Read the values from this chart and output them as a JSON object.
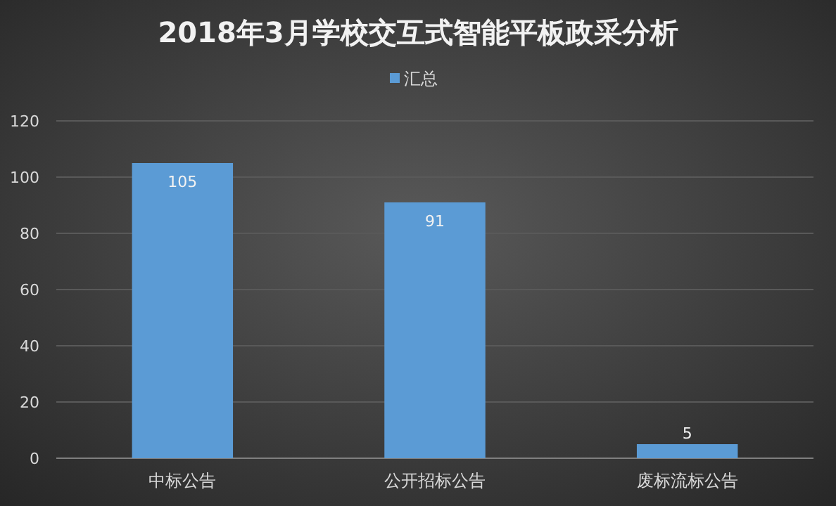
{
  "chart_data": {
    "type": "bar",
    "title": "2018年3月学校交互式智能平板政采分析",
    "categories": [
      "中标公告",
      "公开招标公告",
      "废标流标公告"
    ],
    "series": [
      {
        "name": "汇总",
        "color": "#5b9bd5",
        "values": [
          105,
          91,
          5
        ]
      }
    ],
    "ylim": [
      0,
      120
    ],
    "yticks": [
      0,
      20,
      40,
      60,
      80,
      100,
      120
    ],
    "grid": "y",
    "legend": "top",
    "data_labels": true
  }
}
